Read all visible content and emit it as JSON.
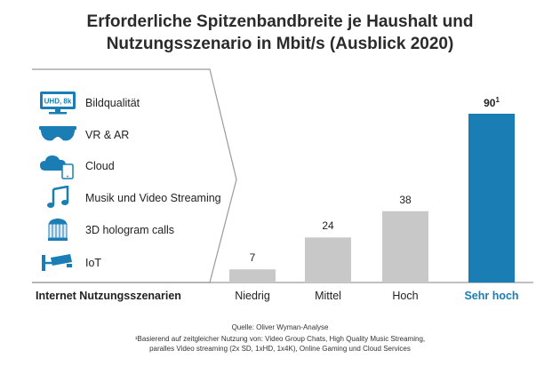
{
  "title_line1": "Erforderliche Spitzenbandbreite je Haushalt und",
  "title_line2": "Nutzungsszenario in Mbit/s (Ausblick 2020)",
  "scenarios": [
    {
      "label": "Bildqualität",
      "icon": "uhd-monitor-icon",
      "badge": "UHD, 8k"
    },
    {
      "label": "VR & AR",
      "icon": "vr-glasses-icon"
    },
    {
      "label": "Cloud",
      "icon": "cloud-device-icon"
    },
    {
      "label": "Musik und Video Streaming",
      "icon": "music-note-icon"
    },
    {
      "label": "3D hologram calls",
      "icon": "hologram-cage-icon"
    },
    {
      "label": "IoT",
      "icon": "security-camera-icon"
    }
  ],
  "xaxis_title": "Internet Nutzungsszenarien",
  "colors": {
    "bar_gray": "#c8c8c8",
    "bar_highlight": "#1a7db4",
    "icon_blue": "#1a7db4",
    "panel_line": "#9a9a9a"
  },
  "chart_data": {
    "type": "bar",
    "categories": [
      "Niedrig",
      "Mittel",
      "Hoch",
      "Sehr hoch"
    ],
    "values": [
      7,
      24,
      38,
      90
    ],
    "value_labels": [
      "7",
      "24",
      "38",
      "90"
    ],
    "highlight_footnote": "1",
    "highlight_index": 3,
    "ylim": [
      0,
      90
    ],
    "grid": false
  },
  "footer": {
    "source": "Quelle: Oliver Wyman-Analyse",
    "note_line1": "¹Basierend auf zeitgleicher Nutzung von: Video Group Chats,  High Quality Music Streaming,",
    "note_line2": "paralles Video streaming (2x SD, 1xHD, 1x4K), Online Gaming und Cloud Services"
  }
}
